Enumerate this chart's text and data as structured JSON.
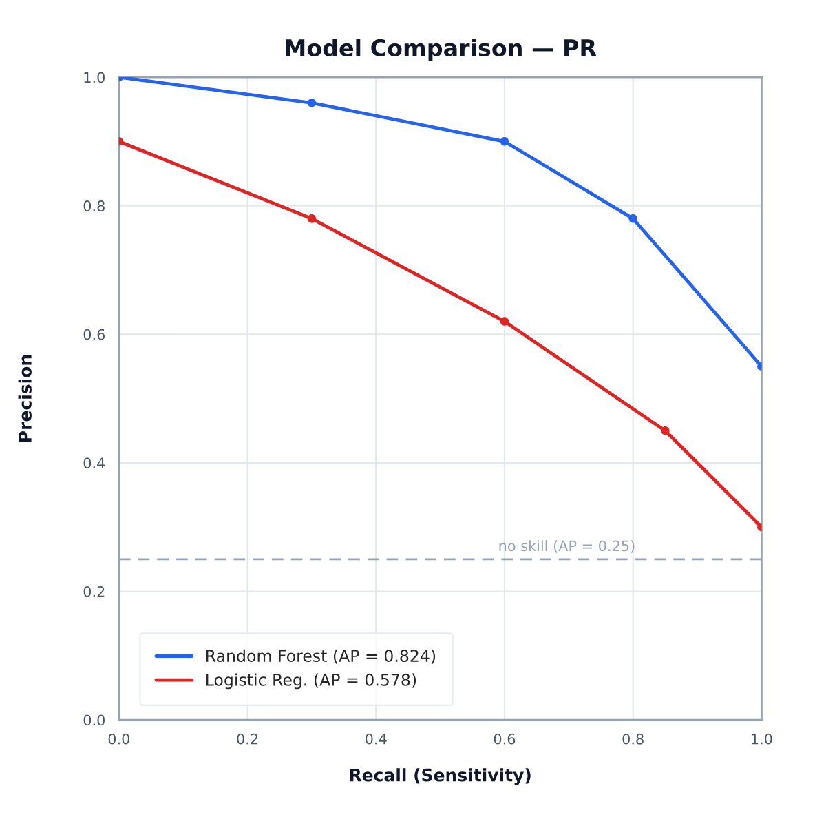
{
  "chart_data": {
    "type": "line",
    "title": "Model Comparison — PR",
    "xlabel": "Recall (Sensitivity)",
    "ylabel": "Precision",
    "series": [
      {
        "name": "Random Forest (AP = 0.824)",
        "color": "#2563eb",
        "x": [
          0,
          0.3,
          0.6,
          0.8,
          1.0
        ],
        "values": [
          1.0,
          0.96,
          0.9,
          0.78,
          0.55
        ]
      },
      {
        "name": "Logistic Reg. (AP = 0.578)",
        "color": "#dc2626",
        "x": [
          0,
          0.3,
          0.6,
          0.85,
          1.0
        ],
        "values": [
          0.9,
          0.78,
          0.62,
          0.45,
          0.3
        ]
      }
    ],
    "ref_lines": [
      {
        "axis": "y",
        "value": 0.25,
        "label": "no skill (AP = 0.25)",
        "color": "#94a3b8",
        "line_style": "dashed"
      }
    ],
    "xlim": [
      0,
      1
    ],
    "ylim": [
      0,
      1
    ],
    "xticks": [
      {
        "value": 0,
        "label": "0.0"
      },
      0.2,
      0.4,
      0.6,
      0.8,
      {
        "value": 1,
        "label": "1.0"
      }
    ],
    "yticks": [
      {
        "value": 0,
        "label": "0.0"
      },
      0.2,
      0.4,
      0.6,
      0.8,
      {
        "value": 1,
        "label": "1.0"
      }
    ],
    "grid": true,
    "legend": "bottom left",
    "marker": "circle",
    "line_style": "solid"
  }
}
